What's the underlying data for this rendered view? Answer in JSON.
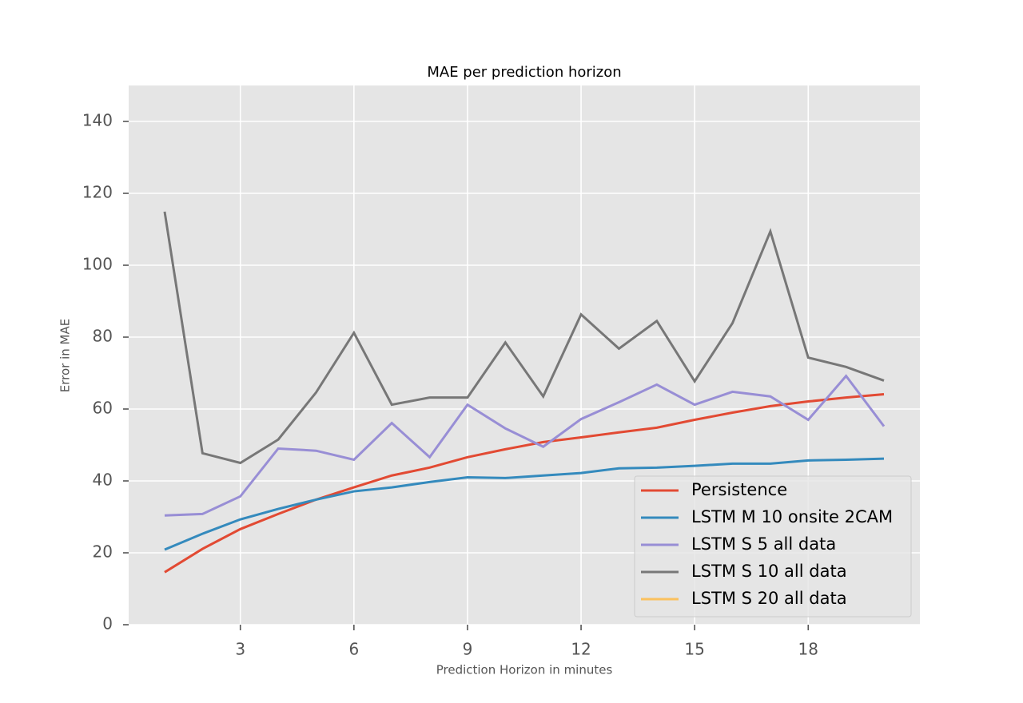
{
  "chart_data": {
    "type": "line",
    "title": "MAE per prediction horizon",
    "x_label": "Prediction Horizon in minutes",
    "y_label": "Error in MAE",
    "x": [
      1,
      2,
      3,
      4,
      5,
      6,
      7,
      8,
      9,
      10,
      11,
      12,
      13,
      14,
      15,
      16,
      17,
      18,
      19,
      20
    ],
    "series": [
      {
        "name": "Persistence",
        "color": "#e24a33",
        "values": [
          14.6,
          21.1,
          26.6,
          30.8,
          34.8,
          38.2,
          41.5,
          43.7,
          46.6,
          48.8,
          50.8,
          52.1,
          53.5,
          54.8,
          57.0,
          59.0,
          60.8,
          62.1,
          63.2,
          64.1
        ]
      },
      {
        "name": "LSTM M 10 onsite 2CAM",
        "color": "#348abd",
        "values": [
          20.9,
          25.3,
          29.3,
          32.2,
          34.8,
          37.1,
          38.2,
          39.7,
          41.0,
          40.8,
          41.5,
          42.2,
          43.5,
          43.7,
          44.2,
          44.8,
          44.8,
          45.7,
          45.9,
          46.2
        ]
      },
      {
        "name": "LSTM S 5 all data",
        "color": "#988ed5",
        "values": [
          30.4,
          30.8,
          35.7,
          49.0,
          48.4,
          45.9,
          56.1,
          46.6,
          61.2,
          54.6,
          49.5,
          57.2,
          61.9,
          66.8,
          61.2,
          64.8,
          63.5,
          57.0,
          69.2,
          55.2
        ]
      },
      {
        "name": "LSTM S 10 all data",
        "color": "#777777",
        "values": [
          114.9,
          47.7,
          45.0,
          51.5,
          64.6,
          81.2,
          61.2,
          63.2,
          63.2,
          78.5,
          63.5,
          86.3,
          76.8,
          84.5,
          67.7,
          83.9,
          109.4,
          74.3,
          71.7,
          67.9
        ]
      },
      {
        "name": "LSTM S 20 all data",
        "color": "#fbc15e",
        "values": [
          null,
          null,
          null,
          null,
          null,
          null,
          null,
          null,
          null,
          null,
          null,
          null,
          null,
          null,
          null,
          null,
          null,
          null,
          null,
          null
        ]
      }
    ],
    "xlim": [
      0.05,
      20.95
    ],
    "xticks": [
      3,
      6,
      9,
      12,
      15,
      18
    ],
    "ylim": [
      0,
      150
    ],
    "yticks": [
      0,
      20,
      40,
      60,
      80,
      100,
      120,
      140
    ],
    "grid": true,
    "legend": "lower right"
  }
}
